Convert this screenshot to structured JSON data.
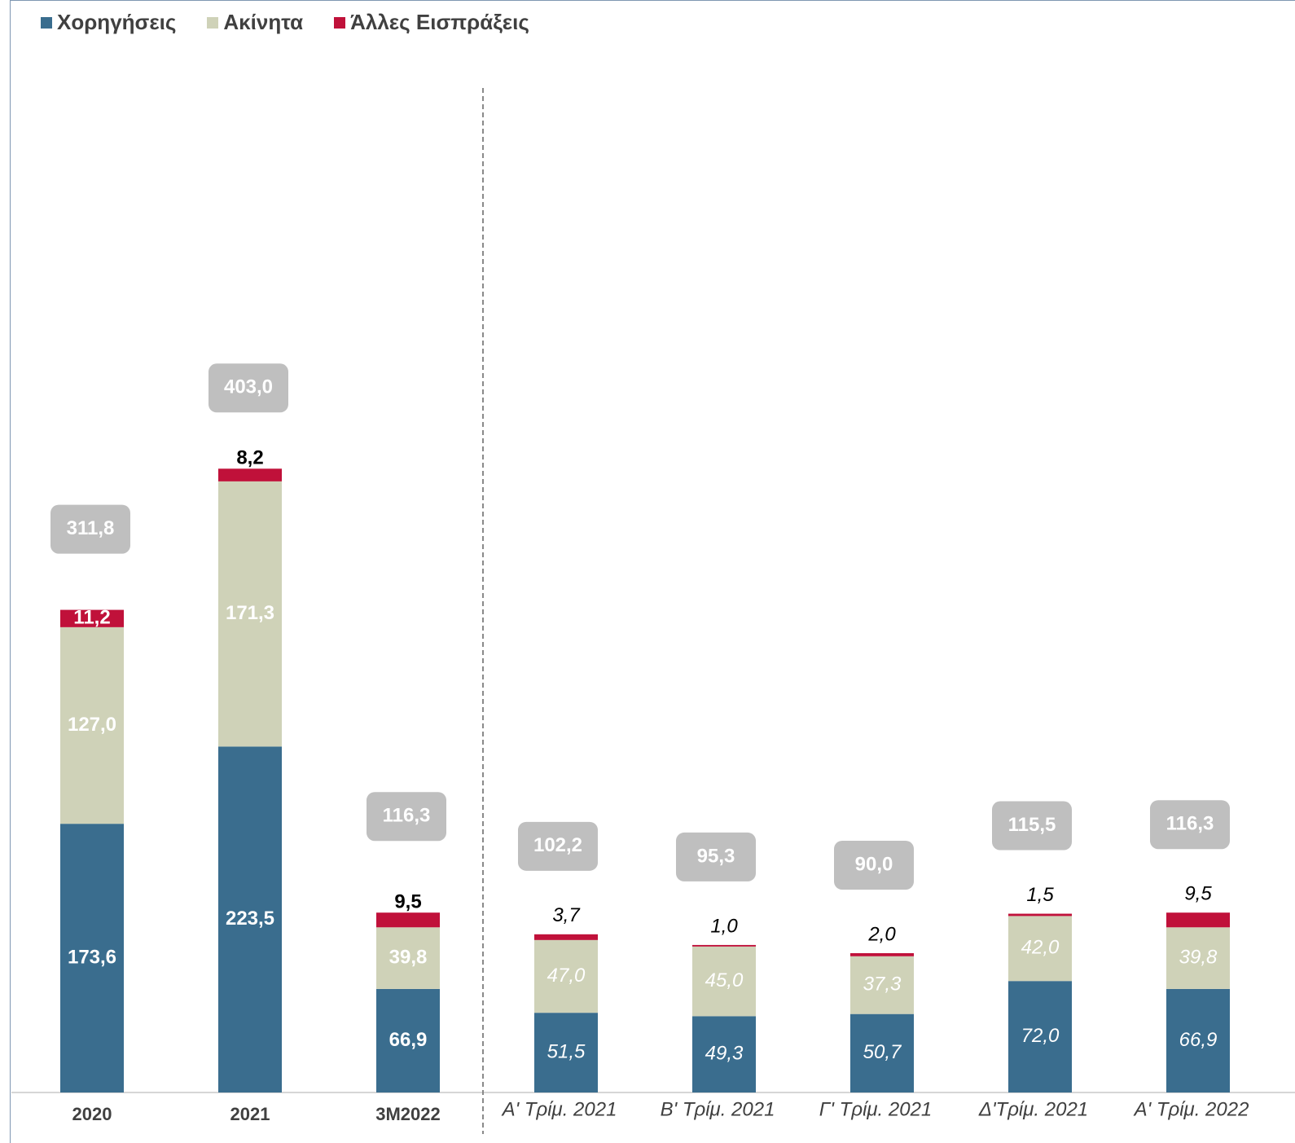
{
  "chart_data": {
    "type": "bar",
    "stacked": true,
    "legend": {
      "placement": "top-left",
      "entries": [
        {
          "name": "Χορηγήσεις",
          "color": "#3a6d8e"
        },
        {
          "name": "Ακίνητα",
          "color": "#cfd2b8"
        },
        {
          "name": "Άλλες Εισπράξεις",
          "color": "#c0113a"
        }
      ]
    },
    "categories": [
      "2020",
      "2021",
      "3M2022",
      "Α' Τρίμ. 2021",
      "Β' Τρίμ. 2021",
      "Γ' Τρίμ. 2021",
      "Δ'Τρίμ. 2021",
      "Α' Τρίμ. 2022"
    ],
    "groups": [
      {
        "name": "annual",
        "categories": [
          "2020",
          "2021",
          "3M2022"
        ],
        "label_style": "bold"
      },
      {
        "name": "quarterly",
        "categories": [
          "Α' Τρίμ. 2021",
          "Β' Τρίμ. 2021",
          "Γ' Τρίμ. 2021",
          "Δ'Τρίμ. 2021",
          "Α' Τρίμ. 2022"
        ],
        "label_style": "italic"
      }
    ],
    "series": [
      {
        "name": "Χορηγήσεις",
        "values": [
          173.6,
          223.5,
          66.9,
          51.5,
          49.3,
          50.7,
          72.0,
          66.9
        ],
        "labels": [
          "173,6",
          "223,5",
          "66,9",
          "51,5",
          "49,3",
          "50,7",
          "72,0",
          "66,9"
        ]
      },
      {
        "name": "Ακίνητα",
        "values": [
          127.0,
          171.3,
          39.8,
          47.0,
          45.0,
          37.3,
          42.0,
          39.8
        ],
        "labels": [
          "127,0",
          "171,3",
          "39,8",
          "47,0",
          "45,0",
          "37,3",
          "42,0",
          "39,8"
        ]
      },
      {
        "name": "Άλλες Εισπράξεις",
        "values": [
          11.2,
          8.2,
          9.5,
          3.7,
          1.0,
          2.0,
          1.5,
          9.5
        ],
        "labels": [
          "11,2",
          "8,2",
          "9,5",
          "3,7",
          "1,0",
          "2,0",
          "1,5",
          "9,5"
        ]
      }
    ],
    "totals": {
      "values": [
        311.8,
        403.0,
        116.3,
        102.2,
        95.3,
        90.0,
        115.5,
        116.3
      ],
      "labels": [
        "311,8",
        "403,0",
        "116,3",
        "102,2",
        "95,3",
        "90,0",
        "115,5",
        "116,3"
      ]
    },
    "separator": "dashed vertical line between annual and quarterly groups",
    "ylim": [
      0,
      403
    ],
    "grid": false,
    "y_axis_visible": false
  }
}
